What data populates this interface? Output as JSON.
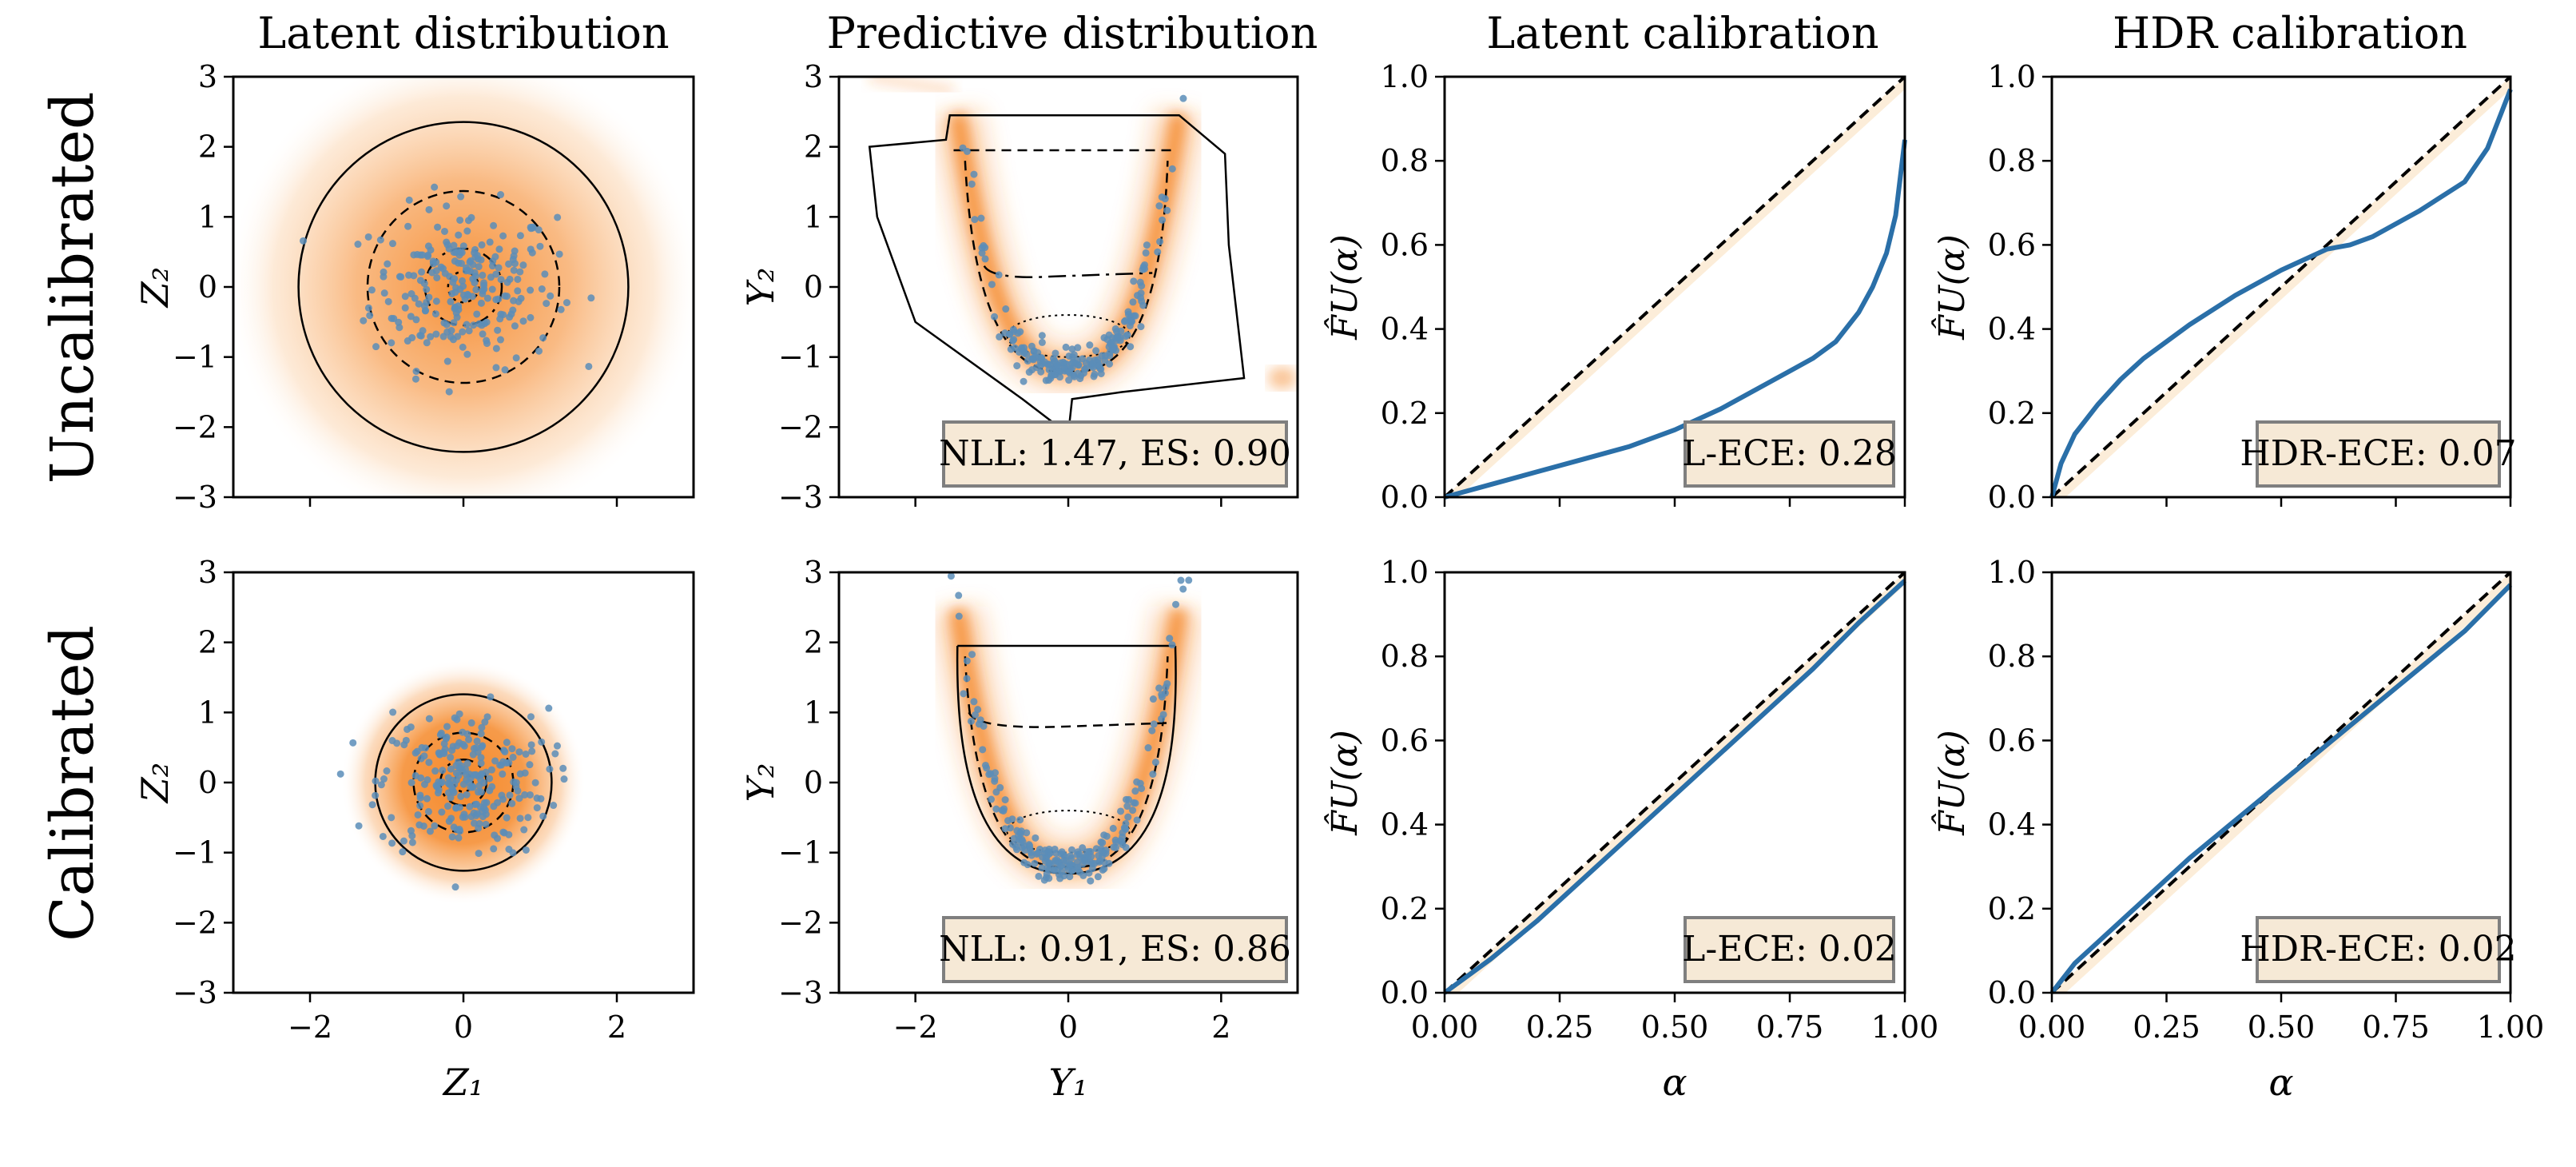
{
  "figure": {
    "col_titles": [
      "Latent distribution",
      "Predictive distribution",
      "Latent calibration",
      "HDR calibration"
    ],
    "row_labels": [
      "Uncalibrated",
      "Calibrated"
    ],
    "z_xlabel": "Z₁",
    "y_xlabel": "Y₁",
    "alpha_xlabel": "α",
    "z_ylabel": "Z₂",
    "y_ylabel": "Y₂",
    "cal_ylabel": "F̂U(α)",
    "scatter_ticks": [
      "−2",
      "0",
      "2"
    ],
    "scatter_yticks": [
      "−3",
      "−2",
      "−1",
      "0",
      "1",
      "2",
      "3"
    ],
    "cal_xticks": [
      "0.00",
      "0.25",
      "0.50",
      "0.75",
      "1.00"
    ],
    "cal_yticks": [
      "0.0",
      "0.2",
      "0.4",
      "0.6",
      "0.8",
      "1.0"
    ],
    "colors": {
      "density": "#f5892a",
      "points": "#5b8db8",
      "curve": "#2a6fa8",
      "box_fill": "#f6e9d6",
      "box_edge": "#7f7f7f"
    }
  },
  "chart_data": [
    {
      "type": "scatter",
      "row": 0,
      "col": 0,
      "title": "Latent distribution",
      "xlabel": "Z₁",
      "ylabel": "Z₂",
      "xlim": [
        -3,
        3
      ],
      "ylim": [
        -3,
        3
      ],
      "contour_radii": [
        2.15,
        1.25,
        0.5,
        0.2
      ],
      "point_spread": 0.6
    },
    {
      "type": "scatter",
      "row": 0,
      "col": 1,
      "title": "Predictive distribution",
      "xlabel": "Y₁",
      "ylabel": "Y₂",
      "xlim": [
        -3,
        3
      ],
      "ylim": [
        -3,
        3
      ],
      "annotation": "NLL: 1.47, ES: 0.90"
    },
    {
      "type": "line",
      "row": 0,
      "col": 2,
      "title": "Latent calibration",
      "xlabel": "α",
      "ylabel": "F̂U(α)",
      "xlim": [
        0,
        1
      ],
      "ylim": [
        0,
        1
      ],
      "annotation": "L-ECE: 0.28",
      "x": [
        0,
        0.1,
        0.2,
        0.3,
        0.4,
        0.5,
        0.6,
        0.7,
        0.75,
        0.8,
        0.85,
        0.9,
        0.93,
        0.96,
        0.98,
        1.0
      ],
      "y": [
        0,
        0.03,
        0.06,
        0.09,
        0.12,
        0.16,
        0.21,
        0.27,
        0.3,
        0.33,
        0.37,
        0.44,
        0.5,
        0.58,
        0.67,
        0.85
      ]
    },
    {
      "type": "line",
      "row": 0,
      "col": 3,
      "title": "HDR calibration",
      "xlabel": "α",
      "ylabel": "F̂U(α)",
      "xlim": [
        0,
        1
      ],
      "ylim": [
        0,
        1
      ],
      "annotation": "HDR-ECE: 0.07",
      "x": [
        0,
        0.02,
        0.05,
        0.1,
        0.15,
        0.2,
        0.3,
        0.4,
        0.5,
        0.6,
        0.65,
        0.7,
        0.8,
        0.9,
        0.95,
        1.0
      ],
      "y": [
        0,
        0.08,
        0.15,
        0.22,
        0.28,
        0.33,
        0.41,
        0.48,
        0.54,
        0.59,
        0.6,
        0.62,
        0.68,
        0.75,
        0.83,
        0.97
      ]
    },
    {
      "type": "scatter",
      "row": 1,
      "col": 0,
      "title": "Latent distribution",
      "xlabel": "Z₁",
      "ylabel": "Z₂",
      "xlim": [
        -3,
        3
      ],
      "ylim": [
        -3,
        3
      ],
      "contour_radii": [
        1.15,
        0.65,
        0.3,
        0.12
      ],
      "point_spread": 0.55
    },
    {
      "type": "scatter",
      "row": 1,
      "col": 1,
      "title": "Predictive distribution",
      "xlabel": "Y₁",
      "ylabel": "Y₂",
      "xlim": [
        -3,
        3
      ],
      "ylim": [
        -3,
        3
      ],
      "annotation": "NLL: 0.91, ES: 0.86"
    },
    {
      "type": "line",
      "row": 1,
      "col": 2,
      "title": "Latent calibration",
      "xlabel": "α",
      "ylabel": "F̂U(α)",
      "xlim": [
        0,
        1
      ],
      "ylim": [
        0,
        1
      ],
      "annotation": "L-ECE: 0.02",
      "x": [
        0,
        0.1,
        0.2,
        0.3,
        0.4,
        0.5,
        0.6,
        0.7,
        0.8,
        0.9,
        1.0
      ],
      "y": [
        0,
        0.08,
        0.17,
        0.27,
        0.37,
        0.47,
        0.57,
        0.67,
        0.77,
        0.88,
        0.98
      ]
    },
    {
      "type": "line",
      "row": 1,
      "col": 3,
      "title": "HDR calibration",
      "xlabel": "α",
      "ylabel": "F̂U(α)",
      "xlim": [
        0,
        1
      ],
      "ylim": [
        0,
        1
      ],
      "annotation": "HDR-ECE: 0.02",
      "x": [
        0,
        0.05,
        0.1,
        0.2,
        0.3,
        0.4,
        0.5,
        0.6,
        0.7,
        0.8,
        0.9,
        1.0
      ],
      "y": [
        0,
        0.07,
        0.12,
        0.22,
        0.32,
        0.41,
        0.5,
        0.59,
        0.68,
        0.77,
        0.86,
        0.97
      ]
    }
  ]
}
